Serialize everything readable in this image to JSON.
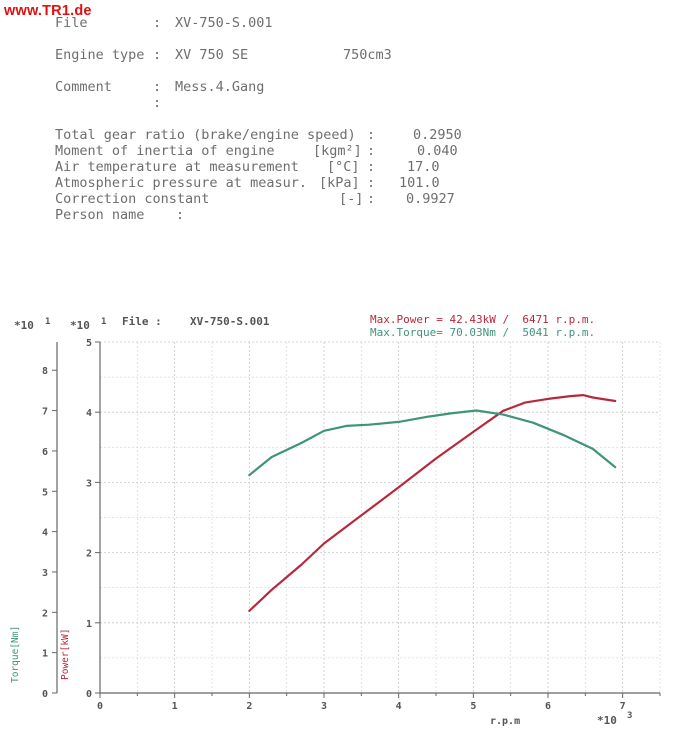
{
  "watermark": "www.TR1.de",
  "header": {
    "file_label": "File",
    "file_value": "XV-750-S.001",
    "engine_type_label": "Engine type",
    "engine_type_value": "XV 750 SE",
    "displacement": "750cm3",
    "comment_label": "Comment",
    "comment_value": "Mess.4.Gang",
    "separator": ":"
  },
  "parameters": [
    {
      "label": "Total gear ratio (brake/engine speed)",
      "unit": "",
      "value": "0.2950"
    },
    {
      "label": "Moment of inertia of engine",
      "unit": "[kgm²]",
      "value": "0.040"
    },
    {
      "label": "Air temperature at measurement",
      "unit": "[°C]",
      "value": "17.0"
    },
    {
      "label": "Atmospheric pressure at measur.",
      "unit": "[kPa]",
      "value": "101.0"
    },
    {
      "label": "Correction constant",
      "unit": "[-]",
      "value": "0.9927"
    },
    {
      "label": "Person name",
      "unit": "",
      "value": ""
    }
  ],
  "chart_data": {
    "type": "line",
    "file_label": "File :",
    "file_value": "XV-750-S.001",
    "max_power": "Max.Power = 42.43kW /  6471 r.p.m.",
    "max_torque": "Max.Torque= 70.03Nm /  5041 r.p.m.",
    "xlabel": "r.p.m",
    "x_multiplier": "*10",
    "x_multiplier_exp": "3",
    "torque_axis_label": "Torque[Nm]",
    "power_axis_label": "Power[kW]",
    "torque_multiplier": "*10",
    "torque_multiplier_exp": "1",
    "power_multiplier": "*10",
    "power_multiplier_exp": "1",
    "xlim": [
      0,
      7.5
    ],
    "torque_ylim": [
      0,
      8.7
    ],
    "power_ylim": [
      0,
      5
    ],
    "x_ticks": [
      "0",
      "1",
      "2",
      "3",
      "4",
      "5",
      "6",
      "7"
    ],
    "torque_ticks": [
      "0",
      "1",
      "2",
      "3",
      "4",
      "5",
      "6",
      "7",
      "8"
    ],
    "power_ticks": [
      "0",
      "1",
      "2",
      "3",
      "4",
      "5"
    ],
    "grid": true,
    "series": [
      {
        "name": "Power[kW]",
        "axis": "power",
        "color": "#b8283c",
        "x": [
          2.0,
          2.3,
          2.7,
          3.0,
          3.5,
          4.0,
          4.5,
          5.0,
          5.4,
          5.7,
          6.0,
          6.3,
          6.47,
          6.6,
          6.9
        ],
        "y": [
          1.17,
          1.47,
          1.83,
          2.13,
          2.53,
          2.93,
          3.34,
          3.72,
          4.02,
          4.14,
          4.19,
          4.23,
          4.243,
          4.21,
          4.16
        ]
      },
      {
        "name": "Torque[Nm]",
        "axis": "torque",
        "color": "#3f9479",
        "x": [
          2.0,
          2.3,
          2.7,
          3.0,
          3.3,
          3.6,
          4.0,
          4.4,
          4.7,
          5.04,
          5.4,
          5.8,
          6.2,
          6.6,
          6.9
        ],
        "y": [
          5.4,
          5.85,
          6.2,
          6.5,
          6.62,
          6.65,
          6.72,
          6.85,
          6.93,
          7.003,
          6.9,
          6.7,
          6.4,
          6.05,
          5.6
        ]
      }
    ]
  }
}
